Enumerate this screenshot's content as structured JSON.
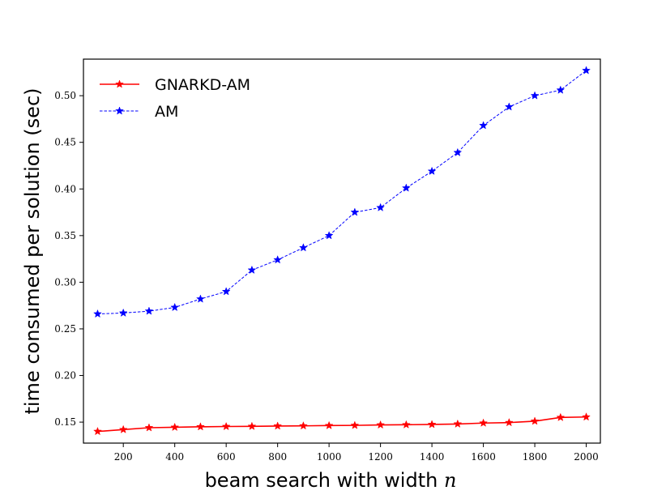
{
  "chart_data": {
    "type": "line",
    "title": "",
    "xlabel": "beam search with width",
    "xlabel_var": "n",
    "ylabel": "time consumed per solution (sec)",
    "xlim": [
      45,
      2055
    ],
    "ylim": [
      0.1275,
      0.5392
    ],
    "xticks": [
      200,
      400,
      600,
      800,
      1000,
      1200,
      1400,
      1600,
      1800,
      2000
    ],
    "xtick_labels": [
      "200",
      "400",
      "600",
      "800",
      "1000",
      "1200",
      "1400",
      "1600",
      "1800",
      "2000"
    ],
    "yticks": [
      0.15,
      0.2,
      0.25,
      0.3,
      0.35,
      0.4,
      0.45,
      0.5
    ],
    "ytick_labels": [
      "0.15",
      "0.20",
      "0.25",
      "0.30",
      "0.35",
      "0.40",
      "0.45",
      "0.50"
    ],
    "grid": false,
    "legend_position": "top-left",
    "x": [
      100,
      200,
      300,
      400,
      500,
      600,
      700,
      800,
      900,
      1000,
      1100,
      1200,
      1300,
      1400,
      1500,
      1600,
      1700,
      1800,
      1900,
      2000
    ],
    "series": [
      {
        "name": "GNARKD-AM",
        "color": "#ff0000",
        "line_style": "solid",
        "marker": "star",
        "values": [
          0.14,
          0.142,
          0.144,
          0.1445,
          0.145,
          0.1453,
          0.1455,
          0.1458,
          0.146,
          0.1463,
          0.1465,
          0.147,
          0.1472,
          0.1475,
          0.148,
          0.149,
          0.1495,
          0.151,
          0.155,
          0.1555
        ]
      },
      {
        "name": "AM",
        "color": "#0000ff",
        "line_style": "dashed",
        "marker": "star",
        "values": [
          0.266,
          0.267,
          0.269,
          0.273,
          0.282,
          0.29,
          0.313,
          0.324,
          0.337,
          0.35,
          0.375,
          0.38,
          0.401,
          0.419,
          0.439,
          0.468,
          0.488,
          0.5,
          0.506,
          0.527
        ]
      }
    ]
  }
}
